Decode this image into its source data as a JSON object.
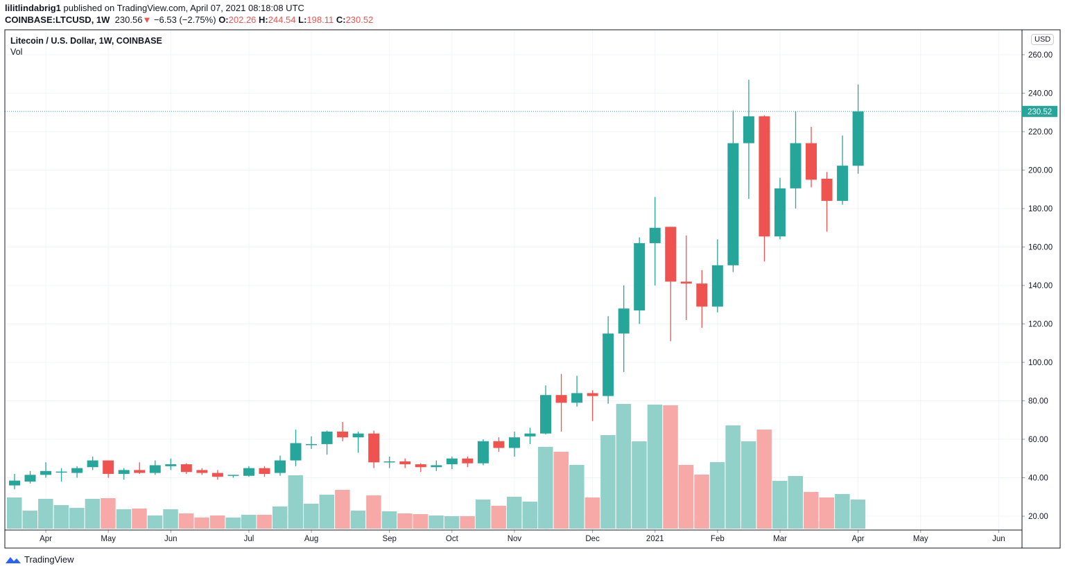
{
  "header": {
    "author": "lilitlindabrig1",
    "published_text": "published on TradingView.com, April 07, 2021 08:18:08 UTC",
    "symbol": "COINBASE:LTCUSD, 1W",
    "last_price": "230.56",
    "change_icon": "triangle-down-icon",
    "change": "−6.53 (−2.75%)",
    "o_label": "O:",
    "o": "202.26",
    "h_label": "H:",
    "h": "244.54",
    "l_label": "L:",
    "l": "198.11",
    "c_label": "C:",
    "c": "230.52"
  },
  "legend": {
    "title": "Litecoin / U.S. Dollar, 1W, COINBASE",
    "vol": "Vol"
  },
  "currency": "USD",
  "last_price_label": "230.52",
  "footer": {
    "brand": "TradingView",
    "logo_icon": "tradingview-logo-icon"
  },
  "colors": {
    "up": "#26a69a",
    "down": "#ef5350",
    "up_vol": "#92d1ca",
    "down_vol": "#f7a9a7",
    "grid": "#f0f3fa"
  },
  "chart_data": {
    "type": "candlestick",
    "title": "Litecoin / U.S. Dollar, 1W, COINBASE",
    "ylim": [
      13,
      272
    ],
    "yticks": [
      "260.00",
      "240.00",
      "220.00",
      "200.00",
      "180.00",
      "160.00",
      "140.00",
      "120.00",
      "100.00",
      "80.00",
      "60.00",
      "40.00",
      "20.00"
    ],
    "ytick_values": [
      260,
      240,
      220,
      200,
      180,
      160,
      140,
      120,
      100,
      80,
      60,
      40,
      20
    ],
    "xtick_labels": [
      {
        "label": "Apr",
        "index": 2
      },
      {
        "label": "May",
        "index": 6
      },
      {
        "label": "Jun",
        "index": 10
      },
      {
        "label": "Jul",
        "index": 15
      },
      {
        "label": "Aug",
        "index": 19
      },
      {
        "label": "Sep",
        "index": 24
      },
      {
        "label": "Oct",
        "index": 28
      },
      {
        "label": "Nov",
        "index": 32
      },
      {
        "label": "Dec",
        "index": 37
      },
      {
        "label": "2021",
        "index": 41
      },
      {
        "label": "Feb",
        "index": 45
      },
      {
        "label": "Mar",
        "index": 49
      },
      {
        "label": "Apr",
        "index": 54
      },
      {
        "label": "May",
        "index": 58
      },
      {
        "label": "Jun",
        "index": 63
      }
    ],
    "ohlc": [
      [
        36,
        42,
        34,
        38.5
      ],
      [
        38,
        43.5,
        37,
        41.5
      ],
      [
        41.5,
        48,
        40,
        43.5
      ],
      [
        43,
        45,
        38,
        43.2
      ],
      [
        42.5,
        46,
        40,
        45
      ],
      [
        45.5,
        51,
        44,
        49
      ],
      [
        49,
        49,
        40,
        42
      ],
      [
        42,
        45,
        39,
        44
      ],
      [
        44,
        48,
        42,
        42.5
      ],
      [
        42.5,
        49,
        41.5,
        46.5
      ],
      [
        46,
        50,
        44,
        47
      ],
      [
        47,
        47.5,
        42,
        43
      ],
      [
        44,
        45,
        41.5,
        42.5
      ],
      [
        42.5,
        44,
        39,
        40.5
      ],
      [
        41,
        41.5,
        40,
        41.5
      ],
      [
        41,
        46,
        40.5,
        45
      ],
      [
        45,
        46,
        40.5,
        42
      ],
      [
        42.5,
        51.5,
        41,
        49
      ],
      [
        49,
        65,
        46,
        58
      ],
      [
        57,
        61.5,
        55,
        57.5
      ],
      [
        57.5,
        64.5,
        52,
        64
      ],
      [
        64,
        69,
        59,
        61
      ],
      [
        61,
        64,
        53,
        63
      ],
      [
        63,
        64.5,
        45,
        48
      ],
      [
        48,
        51,
        45,
        48.5
      ],
      [
        48.5,
        50,
        45,
        47
      ],
      [
        47,
        47.5,
        43,
        45.5
      ],
      [
        45.5,
        49,
        43.5,
        46.5
      ],
      [
        47,
        51,
        44.5,
        50
      ],
      [
        50,
        51,
        45.5,
        47.5
      ],
      [
        47.5,
        60,
        46.5,
        59
      ],
      [
        59,
        61,
        53.5,
        55.5
      ],
      [
        55.5,
        64,
        51,
        61
      ],
      [
        61.5,
        66,
        57.5,
        63
      ],
      [
        63,
        88,
        62.5,
        83
      ],
      [
        83,
        94,
        64,
        79
      ],
      [
        79,
        93,
        77,
        84
      ],
      [
        84,
        85.5,
        69.5,
        82.5
      ],
      [
        82.5,
        124,
        78.5,
        115
      ],
      [
        115,
        140,
        95,
        128
      ],
      [
        127,
        165,
        120,
        162
      ],
      [
        162,
        186,
        140,
        170
      ],
      [
        170.5,
        170.5,
        111,
        142
      ],
      [
        142,
        166,
        122,
        141
      ],
      [
        141,
        148,
        118,
        129
      ],
      [
        129,
        164,
        126,
        150.5
      ],
      [
        150.5,
        231,
        147,
        214
      ],
      [
        214,
        247,
        185,
        228
      ],
      [
        228,
        228.5,
        152.5,
        165.5
      ],
      [
        165.5,
        196,
        164,
        190.5
      ],
      [
        190.5,
        230.5,
        180,
        214
      ],
      [
        214,
        222.5,
        191,
        195
      ],
      [
        195.5,
        199,
        168,
        184
      ],
      [
        184,
        218,
        182,
        202.3
      ],
      [
        202.26,
        244.54,
        198.11,
        230.52
      ]
    ],
    "volume_relative": [
      45,
      26,
      43,
      34,
      30,
      43,
      44,
      28,
      29,
      19,
      28,
      22,
      16,
      19,
      16,
      20,
      20,
      32,
      77,
      36,
      49,
      56,
      26,
      48,
      25,
      22,
      21,
      19,
      18,
      18,
      42,
      33,
      46,
      39,
      118,
      111,
      92,
      45,
      135,
      180,
      126,
      179,
      178,
      92,
      78,
      96,
      149,
      126,
      143,
      69,
      76,
      53,
      45,
      50,
      42
    ],
    "last_close": 230.52,
    "grid": true
  }
}
